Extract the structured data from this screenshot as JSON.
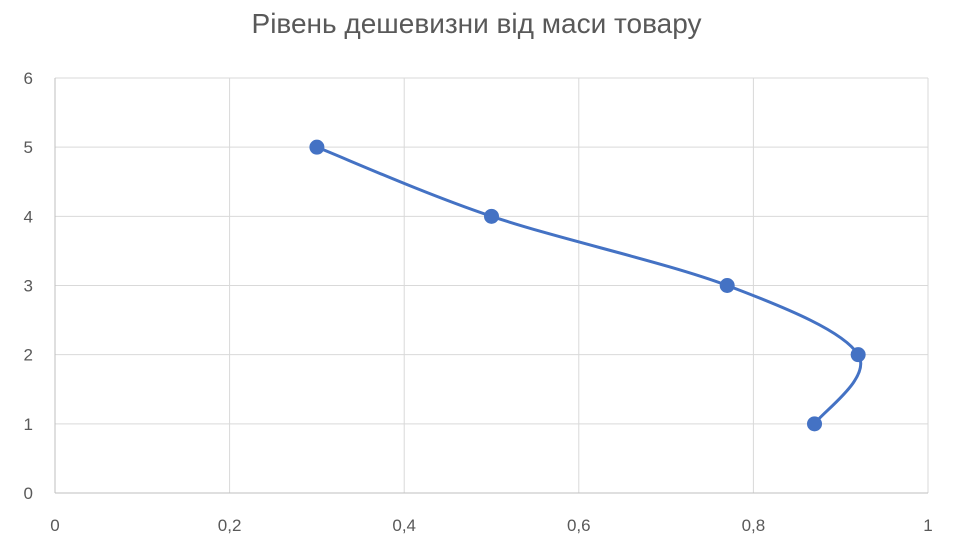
{
  "chart_data": {
    "type": "scatter",
    "title": "Рівень дешевизни від маси товару",
    "xlabel": "",
    "ylabel": "",
    "xlim": [
      0,
      1
    ],
    "ylim": [
      0,
      6
    ],
    "x_ticks": [
      0,
      0.2,
      0.4,
      0.6,
      0.8,
      1
    ],
    "x_tick_labels": [
      "0",
      "0,2",
      "0,4",
      "0,6",
      "0,8",
      "1"
    ],
    "y_ticks": [
      0,
      1,
      2,
      3,
      4,
      5,
      6
    ],
    "y_tick_labels": [
      "0",
      "1",
      "2",
      "3",
      "4",
      "5",
      "6"
    ],
    "grid": true,
    "legend": "none",
    "smooth": true,
    "series": [
      {
        "color": "#4472c4",
        "points": [
          {
            "x": 0.3,
            "y": 5
          },
          {
            "x": 0.5,
            "y": 4
          },
          {
            "x": 0.77,
            "y": 3
          },
          {
            "x": 0.92,
            "y": 2
          },
          {
            "x": 0.87,
            "y": 1
          }
        ]
      }
    ]
  }
}
